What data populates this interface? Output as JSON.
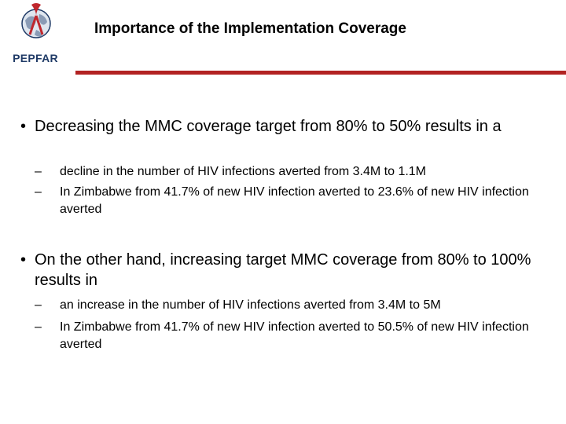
{
  "header": {
    "logo_text": "PEPFAR",
    "title": "Importance of the Implementation Coverage",
    "accent_color": "#b22222"
  },
  "bullets": [
    {
      "symbol": "•",
      "text": "Decreasing the MMC coverage target from 80% to 50% results in a",
      "subitems": [
        {
          "symbol": "–",
          "text": "decline in the number of HIV infections averted from 3.4M to 1.1M"
        },
        {
          "symbol": "–",
          "text": "In Zimbabwe from 41.7% of new HIV infection averted to 23.6% of new HIV infection averted"
        }
      ]
    },
    {
      "symbol": "•",
      "text": "On the other hand, increasing target MMC coverage from 80% to 100% results in",
      "subitems": [
        {
          "symbol": "–",
          "text": "an increase in the number of HIV infections averted from 3.4M to 5M"
        },
        {
          "symbol": "–",
          "text": "In Zimbabwe from 41.7% of new HIV infection averted to 50.5% of new HIV infection averted"
        }
      ]
    }
  ]
}
